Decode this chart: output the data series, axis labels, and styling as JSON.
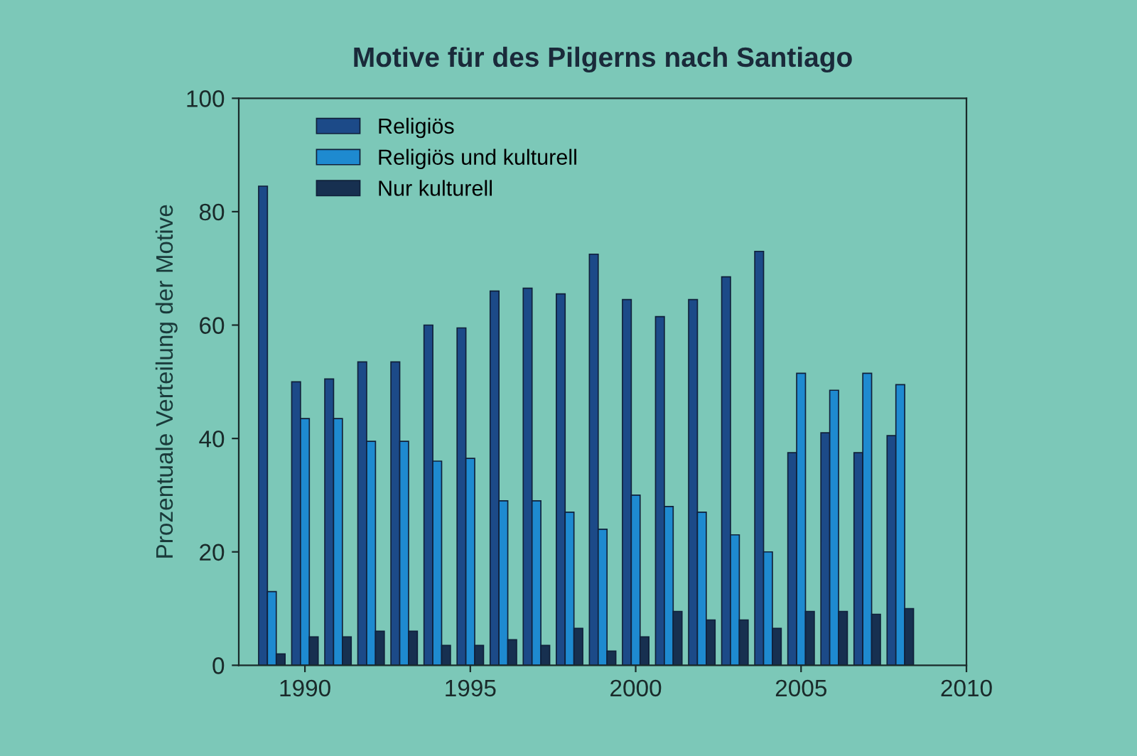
{
  "chart_data": {
    "type": "bar",
    "title": "Motive für des Pilgerns nach Santiago",
    "ylabel": "Prozentuale Verteilung der Motive",
    "x": [
      1989,
      1990,
      1991,
      1992,
      1993,
      1994,
      1995,
      1996,
      1997,
      1998,
      1999,
      2000,
      2001,
      2002,
      2003,
      2004,
      2005,
      2006,
      2007,
      2008
    ],
    "series": [
      {
        "name": "Religiös",
        "color": "#1c4a88",
        "values": [
          84.5,
          50,
          50.5,
          53.5,
          53.5,
          60,
          59.5,
          66,
          66.5,
          65.5,
          72.5,
          64.5,
          61.5,
          64.5,
          68.5,
          73,
          37.5,
          41,
          37.5,
          40.5
        ]
      },
      {
        "name": "Religiös und kulturell",
        "color": "#1e8ad0",
        "values": [
          13,
          43.5,
          43.5,
          39.5,
          39.5,
          36,
          36.5,
          29,
          29,
          27,
          24,
          30,
          28,
          27,
          23,
          20,
          51.5,
          48.5,
          51.5,
          49.5
        ]
      },
      {
        "name": "Nur kulturell",
        "color": "#173050",
        "values": [
          2,
          5,
          5,
          6,
          6,
          3.5,
          3.5,
          4.5,
          3.5,
          6.5,
          2.5,
          5,
          9.5,
          8,
          8,
          6.5,
          9.5,
          9.5,
          9,
          10
        ]
      }
    ],
    "xlim": [
      1988,
      2010
    ],
    "xticks": [
      1990,
      1995,
      2000,
      2005,
      2010
    ],
    "ylim": [
      0,
      100
    ],
    "yticks": [
      0,
      20,
      40,
      60,
      80,
      100
    ],
    "grid": false,
    "legend": "top left"
  }
}
